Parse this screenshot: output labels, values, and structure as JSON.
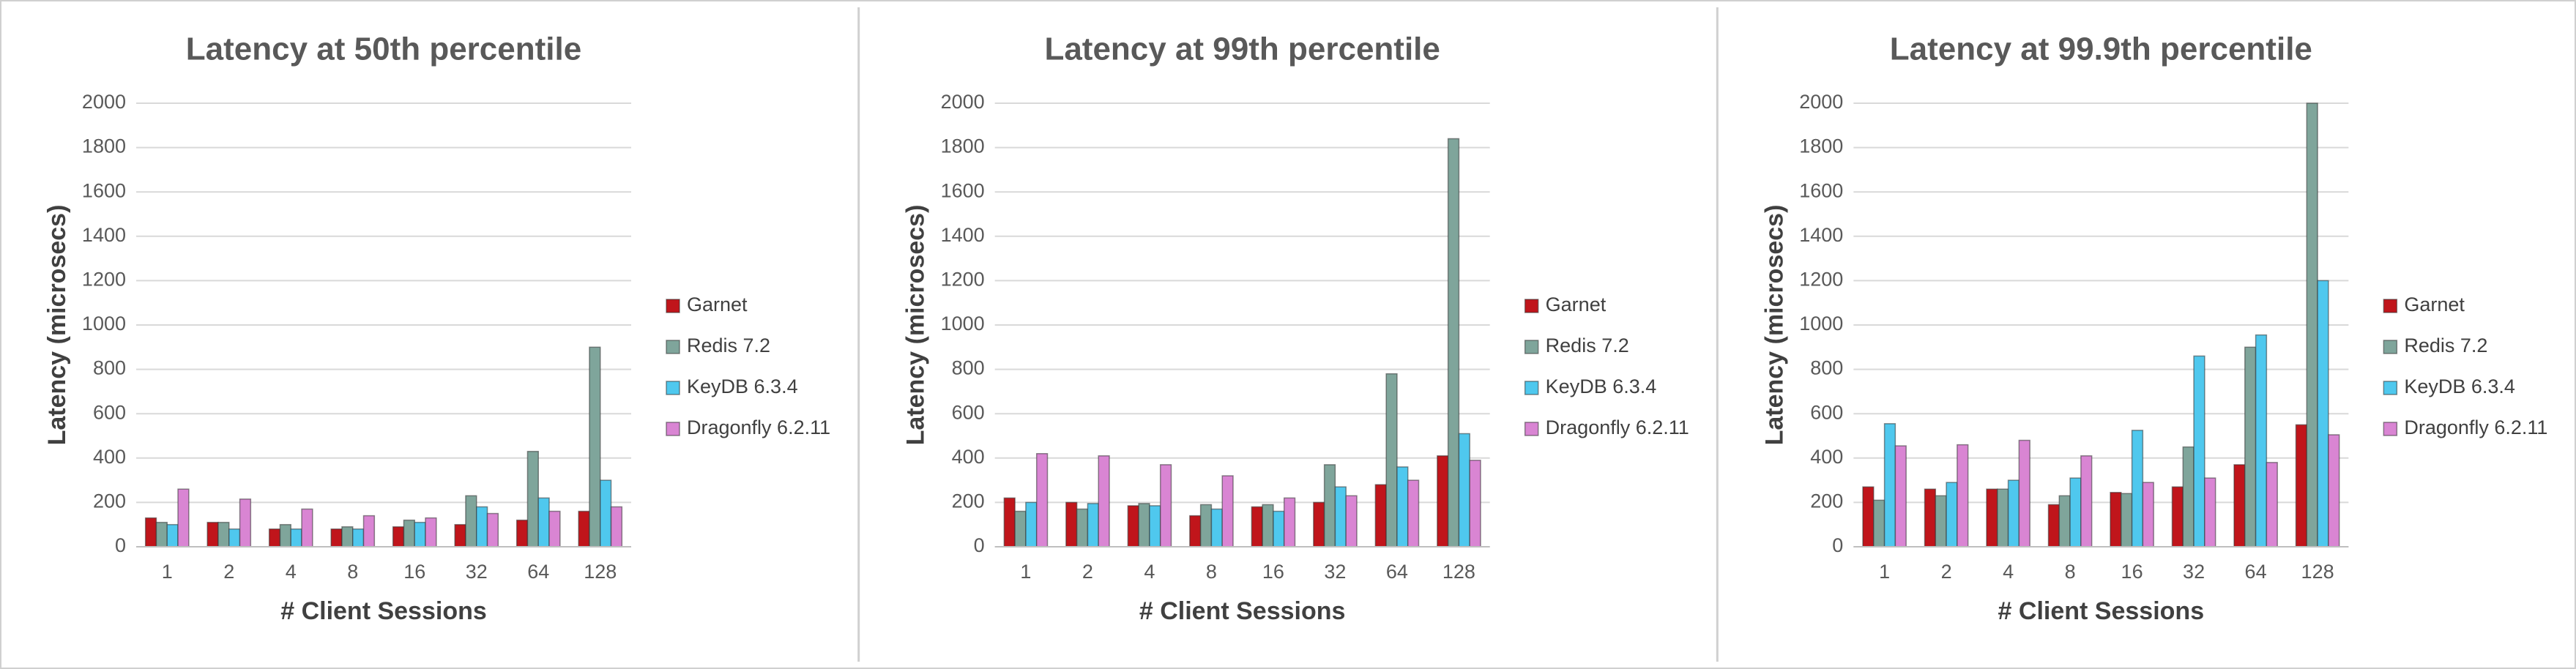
{
  "chart_data": [
    {
      "type": "bar",
      "title": "Latency at 50th percentile",
      "xlabel": "# Client Sessions",
      "ylabel": "Latency (microsecs)",
      "categories": [
        "1",
        "2",
        "4",
        "8",
        "16",
        "32",
        "64",
        "128"
      ],
      "series": [
        {
          "name": "Garnet",
          "color": "#c0151b",
          "values": [
            130,
            110,
            80,
            80,
            90,
            100,
            120,
            160
          ]
        },
        {
          "name": "Redis 7.2",
          "color": "#7fa59b",
          "values": [
            110,
            110,
            100,
            90,
            120,
            230,
            430,
            900
          ]
        },
        {
          "name": "KeyDB 6.3.4",
          "color": "#4fc8ee",
          "values": [
            100,
            80,
            80,
            80,
            110,
            180,
            220,
            300
          ]
        },
        {
          "name": "Dragonfly 6.2.11",
          "color": "#d985d3",
          "values": [
            260,
            215,
            170,
            140,
            130,
            150,
            160,
            180
          ]
        }
      ],
      "ylim": [
        0,
        2000
      ],
      "yticks": [
        0,
        200,
        400,
        600,
        800,
        1000,
        1200,
        1400,
        1600,
        1800,
        2000
      ],
      "grid": true,
      "legend": "right"
    },
    {
      "type": "bar",
      "title": "Latency at 99th percentile",
      "xlabel": "# Client Sessions",
      "ylabel": "Latency (microsecs)",
      "categories": [
        "1",
        "2",
        "4",
        "8",
        "16",
        "32",
        "64",
        "128"
      ],
      "series": [
        {
          "name": "Garnet",
          "color": "#c0151b",
          "values": [
            220,
            200,
            185,
            140,
            180,
            200,
            280,
            410
          ]
        },
        {
          "name": "Redis 7.2",
          "color": "#7fa59b",
          "values": [
            160,
            170,
            195,
            190,
            190,
            370,
            780,
            1840
          ]
        },
        {
          "name": "KeyDB 6.3.4",
          "color": "#4fc8ee",
          "values": [
            200,
            195,
            185,
            170,
            160,
            270,
            360,
            510
          ]
        },
        {
          "name": "Dragonfly 6.2.11",
          "color": "#d985d3",
          "values": [
            420,
            410,
            370,
            320,
            220,
            230,
            300,
            390
          ]
        }
      ],
      "ylim": [
        0,
        2000
      ],
      "yticks": [
        0,
        200,
        400,
        600,
        800,
        1000,
        1200,
        1400,
        1600,
        1800,
        2000
      ],
      "grid": true,
      "legend": "right"
    },
    {
      "type": "bar",
      "title": "Latency at 99.9th percentile",
      "xlabel": "# Client Sessions",
      "ylabel": "Latency (microsecs)",
      "categories": [
        "1",
        "2",
        "4",
        "8",
        "16",
        "32",
        "64",
        "128"
      ],
      "series": [
        {
          "name": "Garnet",
          "color": "#c0151b",
          "values": [
            270,
            260,
            260,
            190,
            245,
            270,
            370,
            550
          ]
        },
        {
          "name": "Redis 7.2",
          "color": "#7fa59b",
          "values": [
            210,
            230,
            260,
            230,
            240,
            450,
            900,
            2000
          ]
        },
        {
          "name": "KeyDB 6.3.4",
          "color": "#4fc8ee",
          "values": [
            555,
            290,
            300,
            310,
            525,
            860,
            955,
            1200
          ]
        },
        {
          "name": "Dragonfly 6.2.11",
          "color": "#d985d3",
          "values": [
            455,
            460,
            480,
            410,
            290,
            310,
            380,
            505
          ]
        }
      ],
      "ylim": [
        0,
        2000
      ],
      "yticks": [
        0,
        200,
        400,
        600,
        800,
        1000,
        1200,
        1400,
        1600,
        1800,
        2000
      ],
      "grid": true,
      "legend": "right"
    }
  ]
}
